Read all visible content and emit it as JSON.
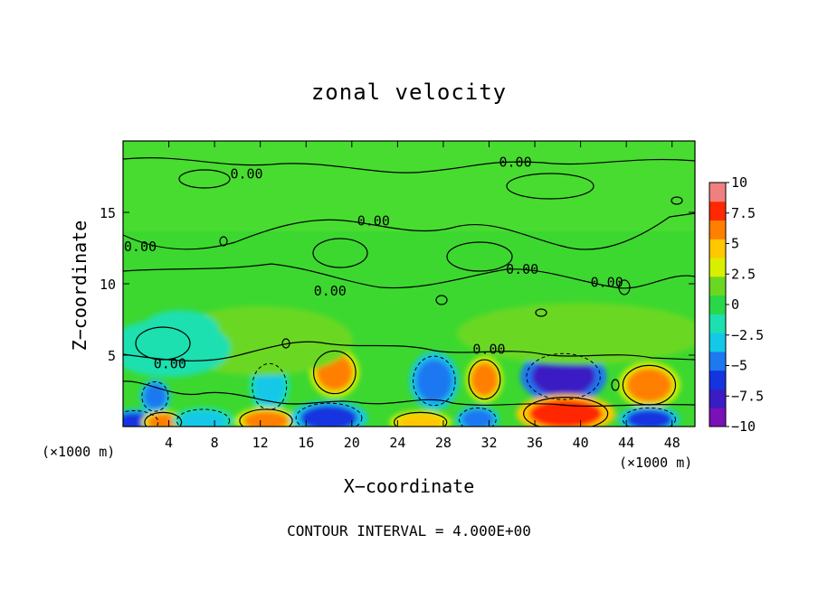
{
  "chart_data": {
    "type": "heatmap",
    "title": "zonal velocity",
    "xlabel": "X−coordinate",
    "ylabel": "Z−coordinate",
    "x_unit_label": "(×1000 m)",
    "footer": "CONTOUR INTERVAL = 4.000E+00",
    "xlim": [
      0,
      50
    ],
    "ylim": [
      0,
      20
    ],
    "x_ticks": [
      4,
      8,
      12,
      16,
      20,
      24,
      28,
      32,
      36,
      40,
      44,
      48
    ],
    "y_ticks": [
      5,
      10,
      15
    ],
    "colorbar": {
      "min": -10,
      "max": 10,
      "tick_labels": [
        "10",
        "7.5",
        "5",
        "2.5",
        "0",
        "−2.5",
        "−5",
        "−7.5",
        "−10"
      ],
      "tick_values": [
        10,
        7.5,
        5,
        2.5,
        0,
        -2.5,
        -5,
        -7.5,
        -10
      ],
      "colors": [
        "#7a10b8",
        "#3a1cc4",
        "#1434e0",
        "#1e78f0",
        "#14c8e8",
        "#1ce0b0",
        "#28d848",
        "#6ad820",
        "#d8f000",
        "#ffc800",
        "#ff8000",
        "#ff2800",
        "#f08080"
      ]
    },
    "contour_interval": 4.0,
    "contour_labels": [
      {
        "text": "0.00",
        "x": 10.8,
        "z": 17.7
      },
      {
        "text": "0.00",
        "x": 34.3,
        "z": 18.5
      },
      {
        "text": "0.00",
        "x": 21.9,
        "z": 14.4
      },
      {
        "text": "0.00",
        "x": 1.5,
        "z": 12.6
      },
      {
        "text": "0.00",
        "x": 34.9,
        "z": 11.0
      },
      {
        "text": "0.00",
        "x": 42.3,
        "z": 10.1
      },
      {
        "text": "0.00",
        "x": 18.1,
        "z": 9.5
      },
      {
        "text": "0.00",
        "x": 32.0,
        "z": 5.4
      },
      {
        "text": "0.00",
        "x": 4.1,
        "z": 4.4
      }
    ],
    "cells": [
      {
        "x": 2.8,
        "z": 2.1,
        "rx": 1.0,
        "rz": 0.9,
        "value": -5
      },
      {
        "x": 1.0,
        "z": 0.3,
        "rx": 1.8,
        "rz": 0.7,
        "value": -6
      },
      {
        "x": 3.5,
        "z": 0.3,
        "rx": 1.4,
        "rz": 0.6,
        "value": 6
      },
      {
        "x": 7.0,
        "z": 0.4,
        "rx": 2.0,
        "rz": 0.7,
        "value": -4
      },
      {
        "x": 12.8,
        "z": 2.8,
        "rx": 1.3,
        "rz": 1.4,
        "value": -4
      },
      {
        "x": 12.5,
        "z": 0.4,
        "rx": 2.0,
        "rz": 0.7,
        "value": 6
      },
      {
        "x": 18.5,
        "z": 3.8,
        "rx": 1.6,
        "rz": 1.3,
        "value": 7
      },
      {
        "x": 18.0,
        "z": 0.6,
        "rx": 2.5,
        "rz": 0.9,
        "value": -7
      },
      {
        "x": 27.2,
        "z": 3.2,
        "rx": 1.6,
        "rz": 1.5,
        "value": -5
      },
      {
        "x": 26.0,
        "z": 0.3,
        "rx": 2.0,
        "rz": 0.6,
        "value": 5
      },
      {
        "x": 31.6,
        "z": 3.3,
        "rx": 1.2,
        "rz": 1.2,
        "value": 6
      },
      {
        "x": 31.0,
        "z": 0.5,
        "rx": 1.4,
        "rz": 0.7,
        "value": -5
      },
      {
        "x": 38.5,
        "z": 3.5,
        "rx": 2.8,
        "rz": 1.4,
        "value": -8
      },
      {
        "x": 38.7,
        "z": 0.9,
        "rx": 3.2,
        "rz": 1.0,
        "value": 8
      },
      {
        "x": 46.0,
        "z": 2.9,
        "rx": 2.0,
        "rz": 1.2,
        "value": 6
      },
      {
        "x": 46.0,
        "z": 0.5,
        "rx": 2.0,
        "rz": 0.7,
        "value": -6
      },
      {
        "x": 12.0,
        "z": 6.0,
        "rx": 6.0,
        "rz": 1.8,
        "value": 2
      },
      {
        "x": 40.0,
        "z": 6.5,
        "rx": 8.0,
        "rz": 1.6,
        "value": 2
      },
      {
        "x": 4.0,
        "z": 5.5,
        "rx": 4.0,
        "rz": 1.5,
        "value": -2
      },
      {
        "x": 5.0,
        "z": 6.8,
        "rx": 2.5,
        "rz": 1.0,
        "value": -1.5
      }
    ]
  }
}
